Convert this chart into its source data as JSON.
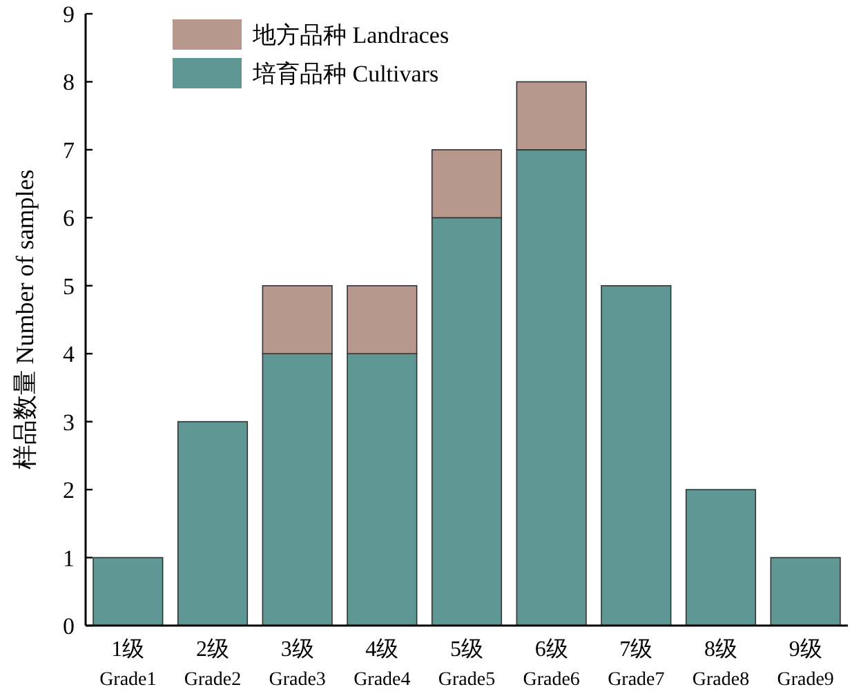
{
  "chart_data": {
    "type": "bar",
    "stacked": true,
    "ylabel": "样品数量 Number of samples",
    "categories": [
      "1级\nGrade1",
      "2级\nGrade2",
      "3级\nGrade3",
      "4级\nGrade4",
      "5级\nGrade5",
      "6级\nGrade6",
      "7级\nGrade7",
      "8级\nGrade8",
      "9级\nGrade9"
    ],
    "series": [
      {
        "name": "培育品种 Cultivars",
        "color": "#5f9795",
        "values": [
          1,
          3,
          4,
          4,
          6,
          7,
          5,
          2,
          1
        ]
      },
      {
        "name": "地方品种 Landraces",
        "color": "#b8978d",
        "values": [
          0,
          0,
          1,
          1,
          1,
          1,
          0,
          0,
          0
        ]
      }
    ],
    "ylim": [
      0,
      9
    ],
    "yticks": [
      0,
      1,
      2,
      3,
      4,
      5,
      6,
      7,
      8,
      9
    ],
    "grid": false,
    "legend": "top left"
  }
}
